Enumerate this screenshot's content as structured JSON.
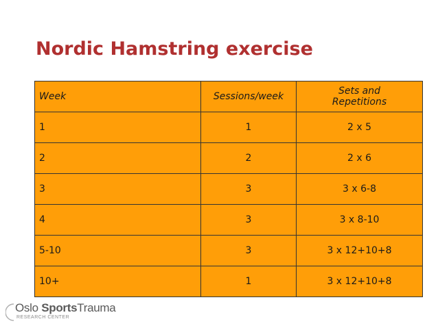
{
  "slide": {
    "title": "Nordic Hamstring exercise"
  },
  "table": {
    "headers": {
      "week": "Week",
      "sessions": "Sessions/week",
      "sets_line1": "Sets and",
      "sets_line2": "Repetitions"
    },
    "rows": [
      {
        "week": "1",
        "sessions": "1",
        "sets": "2 x 5"
      },
      {
        "week": "2",
        "sessions": "2",
        "sets": "2 x 6"
      },
      {
        "week": "3",
        "sessions": "3",
        "sets": "3 x 6-8"
      },
      {
        "week": "4",
        "sessions": "3",
        "sets": "3 x 8-10"
      },
      {
        "week": "5-10",
        "sessions": "3",
        "sets": "3 x 12+10+8"
      },
      {
        "week": "10+",
        "sessions": "1",
        "sets": "3 x 12+10+8"
      }
    ]
  },
  "logo": {
    "name_part1": "Oslo",
    "name_part2": "Sports",
    "name_part3": "Trauma",
    "subtitle": "RESEARCH CENTER"
  },
  "colors": {
    "title": "#b03030",
    "cell_fill": "#ff9e08",
    "border": "#333333"
  }
}
